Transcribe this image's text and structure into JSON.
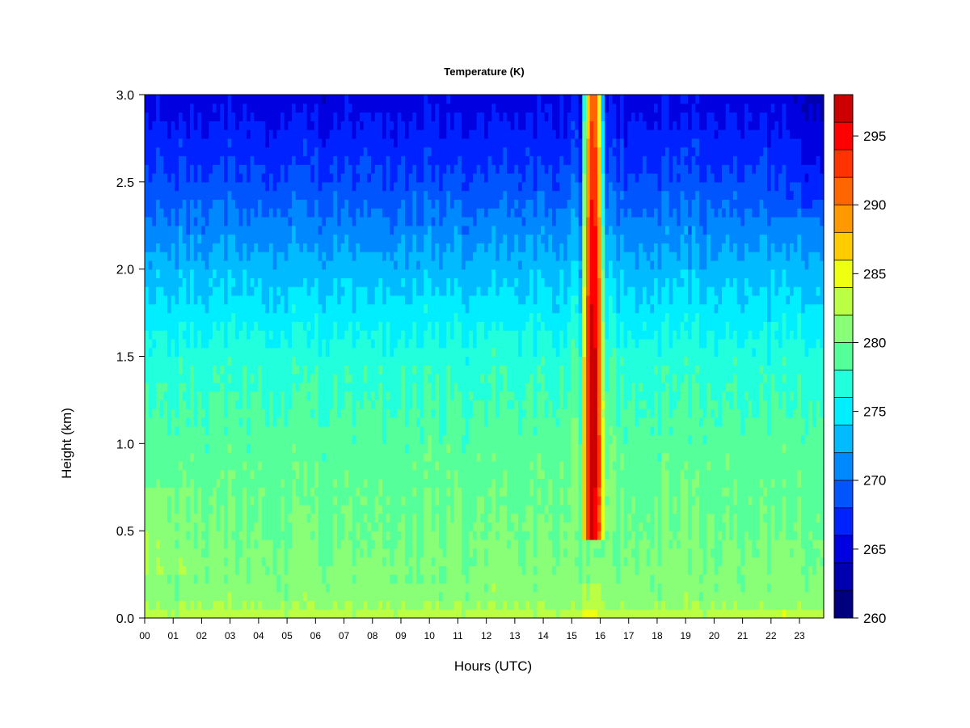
{
  "chart_data": {
    "type": "heatmap",
    "title": "Temperature (K)",
    "xlabel": "Hours (UTC)",
    "ylabel": "Height (km)",
    "x_tick_labels": [
      "00",
      "01",
      "02",
      "03",
      "04",
      "05",
      "06",
      "07",
      "08",
      "09",
      "10",
      "11",
      "12",
      "13",
      "14",
      "15",
      "16",
      "17",
      "18",
      "19",
      "20",
      "21",
      "22",
      "23"
    ],
    "y_tick_labels": [
      "0.0",
      "0.5",
      "1.0",
      "1.5",
      "2.0",
      "2.5",
      "3.0"
    ],
    "xlim": [
      0,
      23.85
    ],
    "ylim": [
      0,
      3.0
    ],
    "colorbar": {
      "range": [
        260,
        298
      ],
      "levels": [
        260,
        262,
        264,
        266,
        268,
        270,
        272,
        274,
        276,
        278,
        280,
        282,
        284,
        286,
        288,
        290,
        292,
        294,
        296,
        298
      ],
      "colors": [
        "#00007f",
        "#0000b0",
        "#0000e0",
        "#0022ff",
        "#0055ff",
        "#0088ff",
        "#00bbff",
        "#00eeff",
        "#22ffdd",
        "#55ff99",
        "#88ff77",
        "#bbff44",
        "#eeff11",
        "#ffcc00",
        "#ff9900",
        "#ff6600",
        "#ff3300",
        "#ff0000",
        "#cc0000",
        "#880000"
      ],
      "tick_labels": [
        "260",
        "265",
        "270",
        "275",
        "280",
        "285",
        "290",
        "295"
      ]
    },
    "warm_event": {
      "start_hour": 15.45,
      "end_hour": 16.05,
      "peak_hour": 15.75,
      "peak_temperature_K": 297,
      "peak_height_km": 1.2
    },
    "profile_km_K": [
      [
        0.0,
        283.5
      ],
      [
        0.1,
        281
      ],
      [
        0.5,
        280
      ],
      [
        1.0,
        279
      ],
      [
        1.5,
        277
      ],
      [
        2.0,
        273
      ],
      [
        2.5,
        268.5
      ],
      [
        3.0,
        265
      ]
    ]
  }
}
